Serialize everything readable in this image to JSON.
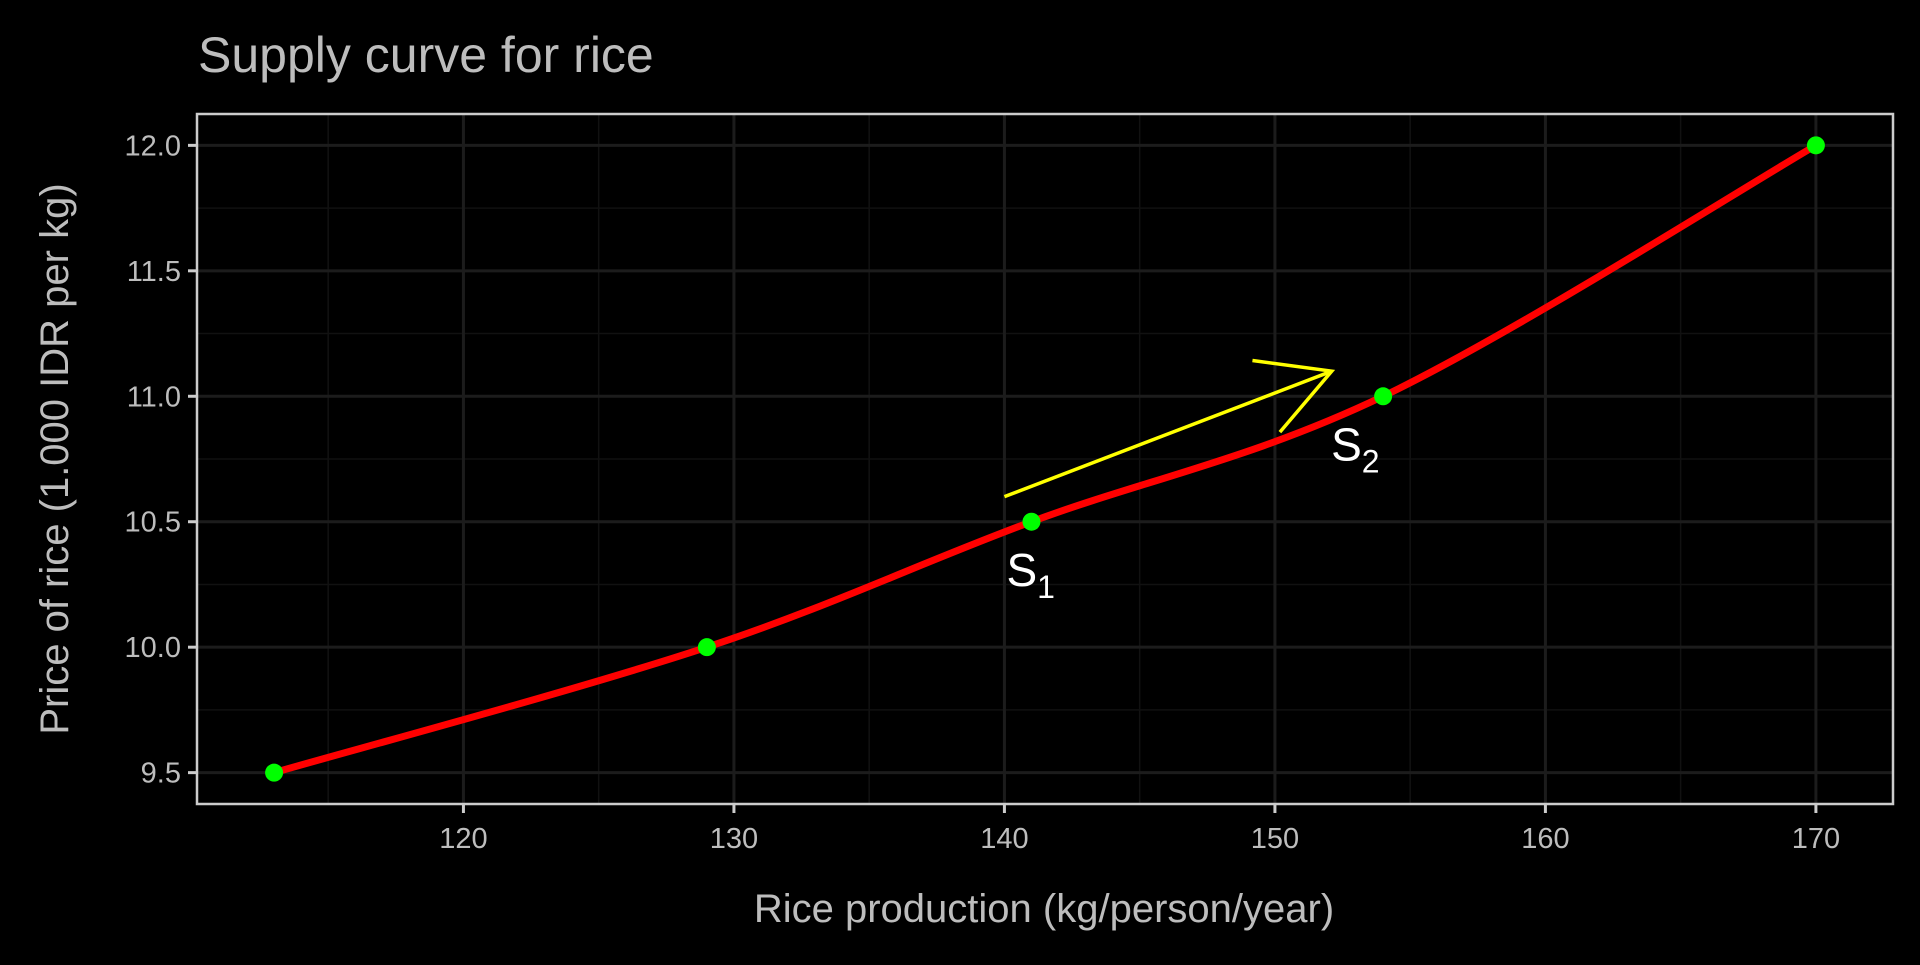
{
  "chart_data": {
    "type": "line",
    "title": "Supply curve for rice",
    "xlabel": "Rice production (kg/person/year)",
    "ylabel": "Price of rice (1.000 IDR per kg)",
    "xlim": [
      110.15,
      172.85
    ],
    "ylim": [
      9.375,
      12.125
    ],
    "x_ticks": [
      120,
      130,
      140,
      150,
      160,
      170
    ],
    "y_ticks": [
      "9.5",
      "10.0",
      "10.5",
      "11.0",
      "11.5",
      "12.0"
    ],
    "grid": true,
    "series": [
      {
        "x": [
          113,
          129,
          141,
          154,
          170
        ],
        "y": [
          9.5,
          10.0,
          10.5,
          11.0,
          12.0
        ],
        "line_color": "#ff0000",
        "point_color": "#00ff00"
      }
    ],
    "annotations": [
      {
        "text": "S",
        "sub": "1",
        "x": 141,
        "y": 10.3
      },
      {
        "text": "S",
        "sub": "2",
        "x": 153,
        "y": 10.8
      }
    ],
    "arrow": {
      "from": [
        140,
        10.6
      ],
      "to": [
        152.1,
        11.1
      ],
      "color": "#ffff00"
    },
    "colors": {
      "background": "#000000",
      "grid": "#1c1c1c",
      "border": "#cccccc",
      "text": "#bdbdbd"
    }
  }
}
